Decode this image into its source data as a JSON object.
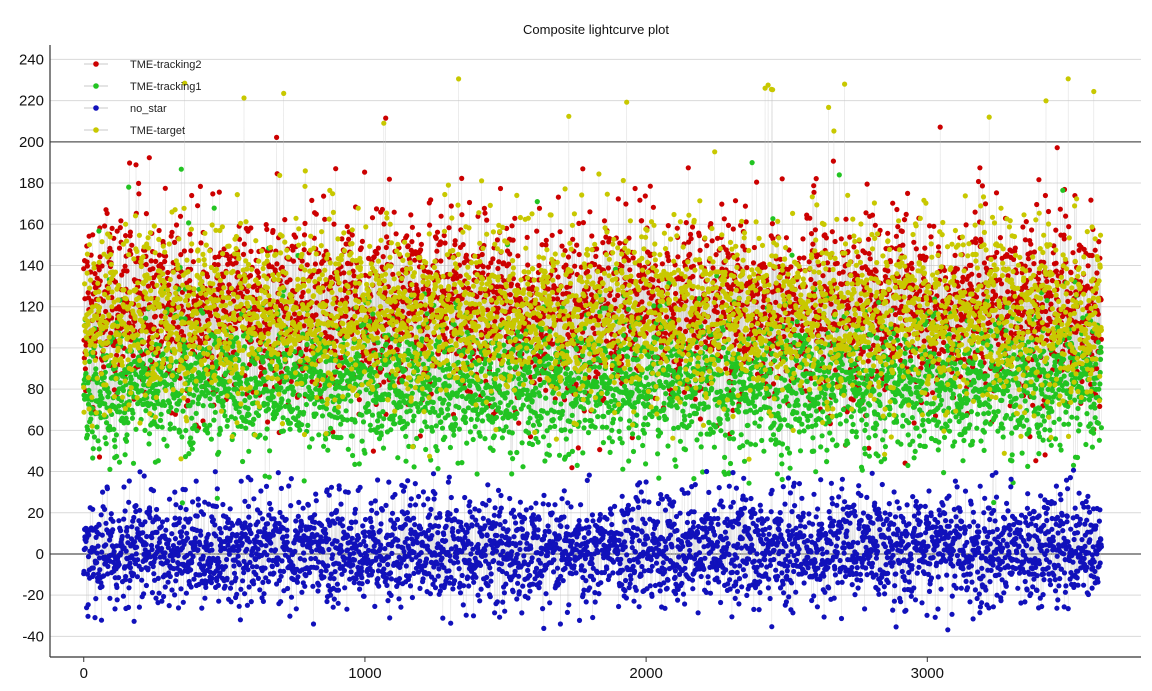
{
  "chart_data": {
    "type": "scatter",
    "title": "Composite lightcurve plot",
    "xlabel": "",
    "ylabel": "",
    "xlim": [
      -120,
      3760
    ],
    "ylim": [
      -50,
      247
    ],
    "x_ticks": [
      0,
      1000,
      2000,
      3000
    ],
    "y_ticks": [
      -40,
      -20,
      0,
      20,
      40,
      60,
      80,
      100,
      120,
      140,
      160,
      180,
      200,
      220,
      240
    ],
    "grid": "horizontal",
    "emphasized_gridlines": [
      0,
      200
    ],
    "legend_position": "top-left",
    "n_points_per_series": 3620,
    "series": [
      {
        "name": "TME-tracking2",
        "color": "#cc0000",
        "center": 118,
        "spread": 22,
        "min": 40,
        "max": 212
      },
      {
        "name": "TME-tracking1",
        "color": "#22c422",
        "center": 82,
        "spread": 16,
        "min": 24,
        "max": 193
      },
      {
        "name": "no_star",
        "color": "#1111bb",
        "center": 2,
        "spread": 13,
        "min": -38,
        "max": 41
      },
      {
        "name": "TME-target",
        "color": "#c8c800",
        "center": 115,
        "spread": 21,
        "min": 30,
        "max": 233
      }
    ],
    "connector_color": "#c8c8c8"
  }
}
